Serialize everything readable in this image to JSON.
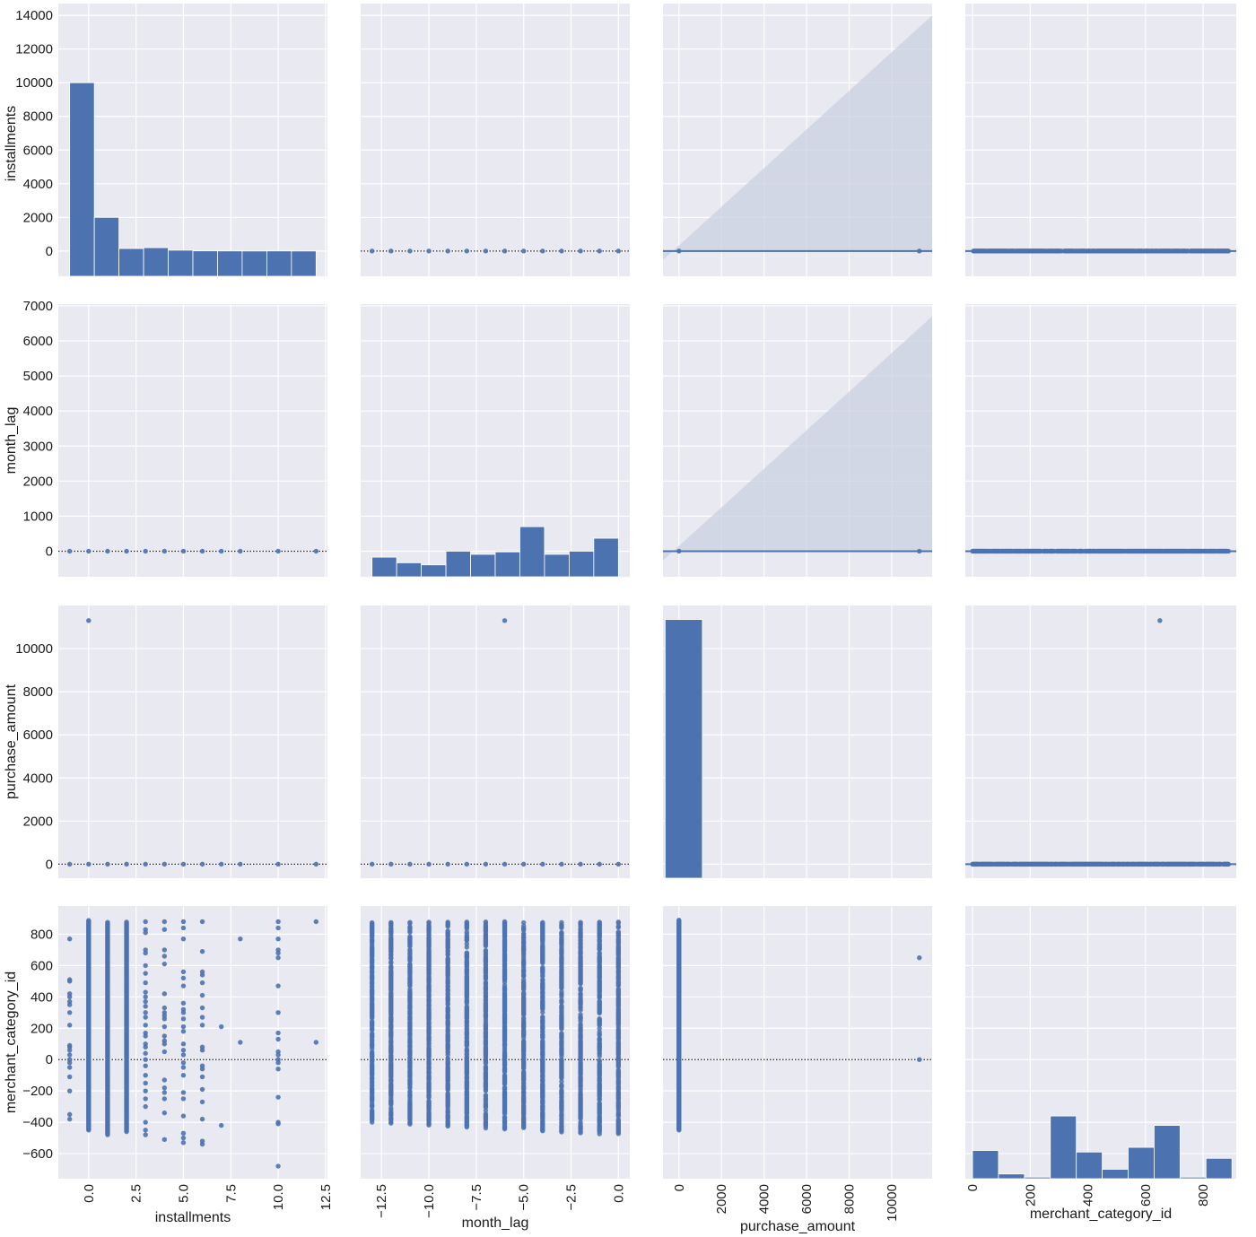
{
  "figure": {
    "type": "pairplot",
    "background": "#ffffff",
    "panel_bg": "#e9e9f1",
    "grid_color": "#ffffff",
    "accent": "#4c72b0",
    "ci_fill": "#c9d0e2",
    "variables": [
      "installments",
      "month_lag",
      "purchase_amount",
      "merchant_category_id"
    ]
  },
  "labels": {
    "row0": "installments",
    "row1": "month_lag",
    "row2": "purchase_amount",
    "row3": "merchant_category_id",
    "col0": "installments",
    "col1": "month_lag",
    "col2": "purchase_amount",
    "col3": "merchant_category_id"
  },
  "chart_data": {
    "type": "scatter",
    "title": "",
    "layout": "4x4 pairplot; diagonal = histograms, off-diagonal = scatter / regression plots",
    "grid": true,
    "columns": [
      {
        "name": "installments",
        "xlim": [
          -1.6,
          12.6
        ],
        "xticks": [
          0.0,
          2.5,
          5.0,
          7.5,
          10.0,
          12.5
        ],
        "xtick_labels": [
          "0.0",
          "2.5",
          "5.0",
          "7.5",
          "10.0",
          "12.5"
        ]
      },
      {
        "name": "month_lag",
        "xlim": [
          -13.6,
          0.6
        ],
        "xticks": [
          -12.5,
          -10.0,
          -7.5,
          -5.0,
          -2.5,
          0.0
        ],
        "xtick_labels": [
          "−12.5",
          "−10.0",
          "−7.5",
          "−5.0",
          "−2.5",
          "0.0"
        ]
      },
      {
        "name": "purchase_amount",
        "xlim": [
          -750,
          11900
        ],
        "xticks": [
          0,
          2000,
          4000,
          6000,
          8000,
          10000
        ],
        "xtick_labels": [
          "0",
          "2000",
          "4000",
          "6000",
          "8000",
          "10000"
        ]
      },
      {
        "name": "merchant_category_id",
        "xlim": [
          -25,
          915
        ],
        "xticks": [
          0,
          200,
          400,
          600,
          800
        ],
        "xtick_labels": [
          "0",
          "200",
          "400",
          "600",
          "800"
        ]
      }
    ],
    "rows": [
      {
        "name": "installments",
        "ylim": [
          -1500,
          14700
        ],
        "yticks": [
          0,
          2000,
          4000,
          6000,
          8000,
          10000,
          12000,
          14000
        ],
        "ytick_labels": [
          "0",
          "2000",
          "4000",
          "6000",
          "8000",
          "10000",
          "12000",
          "14000"
        ]
      },
      {
        "name": "month_lag",
        "ylim": [
          -730,
          7050
        ],
        "yticks": [
          0,
          1000,
          2000,
          3000,
          4000,
          5000,
          6000,
          7000
        ],
        "ytick_labels": [
          "0",
          "1000",
          "2000",
          "3000",
          "4000",
          "5000",
          "6000",
          "7000"
        ]
      },
      {
        "name": "purchase_amount",
        "ylim": [
          -650,
          12000
        ],
        "yticks": [
          0,
          2000,
          4000,
          6000,
          8000,
          10000
        ],
        "ytick_labels": [
          "0",
          "2000",
          "4000",
          "6000",
          "8000",
          "10000"
        ]
      },
      {
        "name": "merchant_category_id",
        "ylim": [
          -760,
          980
        ],
        "yticks": [
          -600,
          -400,
          -200,
          0,
          200,
          400,
          600,
          800
        ],
        "ytick_labels": [
          "−600",
          "−400",
          "−200",
          "0",
          "200",
          "400",
          "600",
          "800"
        ]
      }
    ],
    "histograms": [
      {
        "variable": "installments",
        "bin_edges": [
          -1,
          0.3,
          1.6,
          2.9,
          4.2,
          5.5,
          6.8,
          8.1,
          9.4,
          10.7,
          12
        ],
        "counts": [
          10000,
          2000,
          150,
          200,
          50,
          10,
          5,
          2,
          5,
          1
        ],
        "baseline": -1500
      },
      {
        "variable": "month_lag",
        "bin_edges": [
          -13,
          -11.7,
          -10.4,
          -9.1,
          -7.8,
          -6.5,
          -5.2,
          -3.9,
          -2.6,
          -1.3,
          0
        ],
        "counts": [
          -170,
          -330,
          -390,
          0,
          -90,
          -20,
          700,
          -90,
          0,
          370
        ],
        "baseline": -730
      },
      {
        "variable": "purchase_amount",
        "bin_edges": [
          -650,
          1100
        ],
        "counts": [
          11350
        ],
        "baseline": -650
      },
      {
        "variable": "merchant_category_id",
        "bin_edges": [
          0,
          90,
          180,
          270,
          360,
          450,
          540,
          630,
          720,
          810,
          900
        ],
        "counts": [
          -580,
          -730,
          -750,
          -360,
          -590,
          -700,
          -560,
          -420,
          -750,
          -630
        ],
        "baseline": -760
      }
    ],
    "scatter_points": {
      "installments_values": [
        -1,
        0,
        1,
        2,
        3,
        4,
        5,
        6,
        7,
        8,
        10,
        12
      ],
      "month_lag_values": [
        -13,
        -12,
        -11,
        -10,
        -9,
        -8,
        -7,
        -6,
        -5,
        -4,
        -3,
        -2,
        -1,
        0
      ],
      "purchase_amount_outlier": {
        "purchase_amount": 11300,
        "installments": 0,
        "month_lag": -6,
        "merchant_category_id": 650
      },
      "merchant_vs_installments": [
        {
          "x": -1,
          "y": [
            770,
            510,
            500,
            420,
            400,
            370,
            350,
            300,
            220,
            90,
            80,
            60,
            30,
            0,
            -20,
            -50,
            -110,
            -200,
            -350,
            -380
          ]
        },
        {
          "x": 0,
          "ymin": -450,
          "ymax": 890,
          "dense": true
        },
        {
          "x": 1,
          "ymin": -480,
          "ymax": 880,
          "dense": true
        },
        {
          "x": 2,
          "ymin": -460,
          "ymax": 880,
          "dense": true
        },
        {
          "x": 3,
          "y": [
            880,
            830,
            810,
            700,
            680,
            600,
            550,
            490,
            430,
            400,
            370,
            340,
            300,
            270,
            220,
            170,
            150,
            100,
            80,
            40,
            0,
            -40,
            -100,
            -150,
            -200,
            -250,
            -300,
            -400,
            -450,
            -480
          ]
        },
        {
          "x": 4,
          "y": [
            880,
            830,
            700,
            660,
            610,
            420,
            330,
            300,
            280,
            260,
            210,
            150,
            120,
            100,
            50,
            -130,
            -180,
            -210,
            -250,
            -340,
            -510
          ]
        },
        {
          "x": 5,
          "y": [
            880,
            840,
            770,
            560,
            520,
            470,
            360,
            320,
            300,
            260,
            210,
            180,
            100,
            60,
            30,
            -20,
            -50,
            -100,
            -210,
            -250,
            -360,
            -470,
            -500,
            -530
          ]
        },
        {
          "x": 6,
          "y": [
            880,
            690,
            560,
            540,
            490,
            410,
            330,
            270,
            220,
            80,
            60,
            -40,
            -60,
            -110,
            -190,
            -270,
            -380,
            -520,
            -540
          ]
        },
        {
          "x": 7,
          "y": [
            210,
            -420
          ]
        },
        {
          "x": 8,
          "y": [
            770,
            110
          ]
        },
        {
          "x": 10,
          "y": [
            880,
            840,
            770,
            700,
            680,
            650,
            470,
            300,
            170,
            130,
            50,
            30,
            0,
            -20,
            -60,
            -240,
            -400,
            -410,
            -680
          ]
        },
        {
          "x": 12,
          "y": [
            880,
            110
          ]
        }
      ],
      "merchant_vs_month_lag": {
        "ymin_range": [
          -480,
          -400
        ],
        "ymax": 890
      }
    },
    "regression": {
      "line_color": "#4c72b0",
      "reference_line": "dotted black at y=0",
      "ci_band": "wide confidence cone in purchase_amount column (rows installments and month_lag)"
    }
  }
}
